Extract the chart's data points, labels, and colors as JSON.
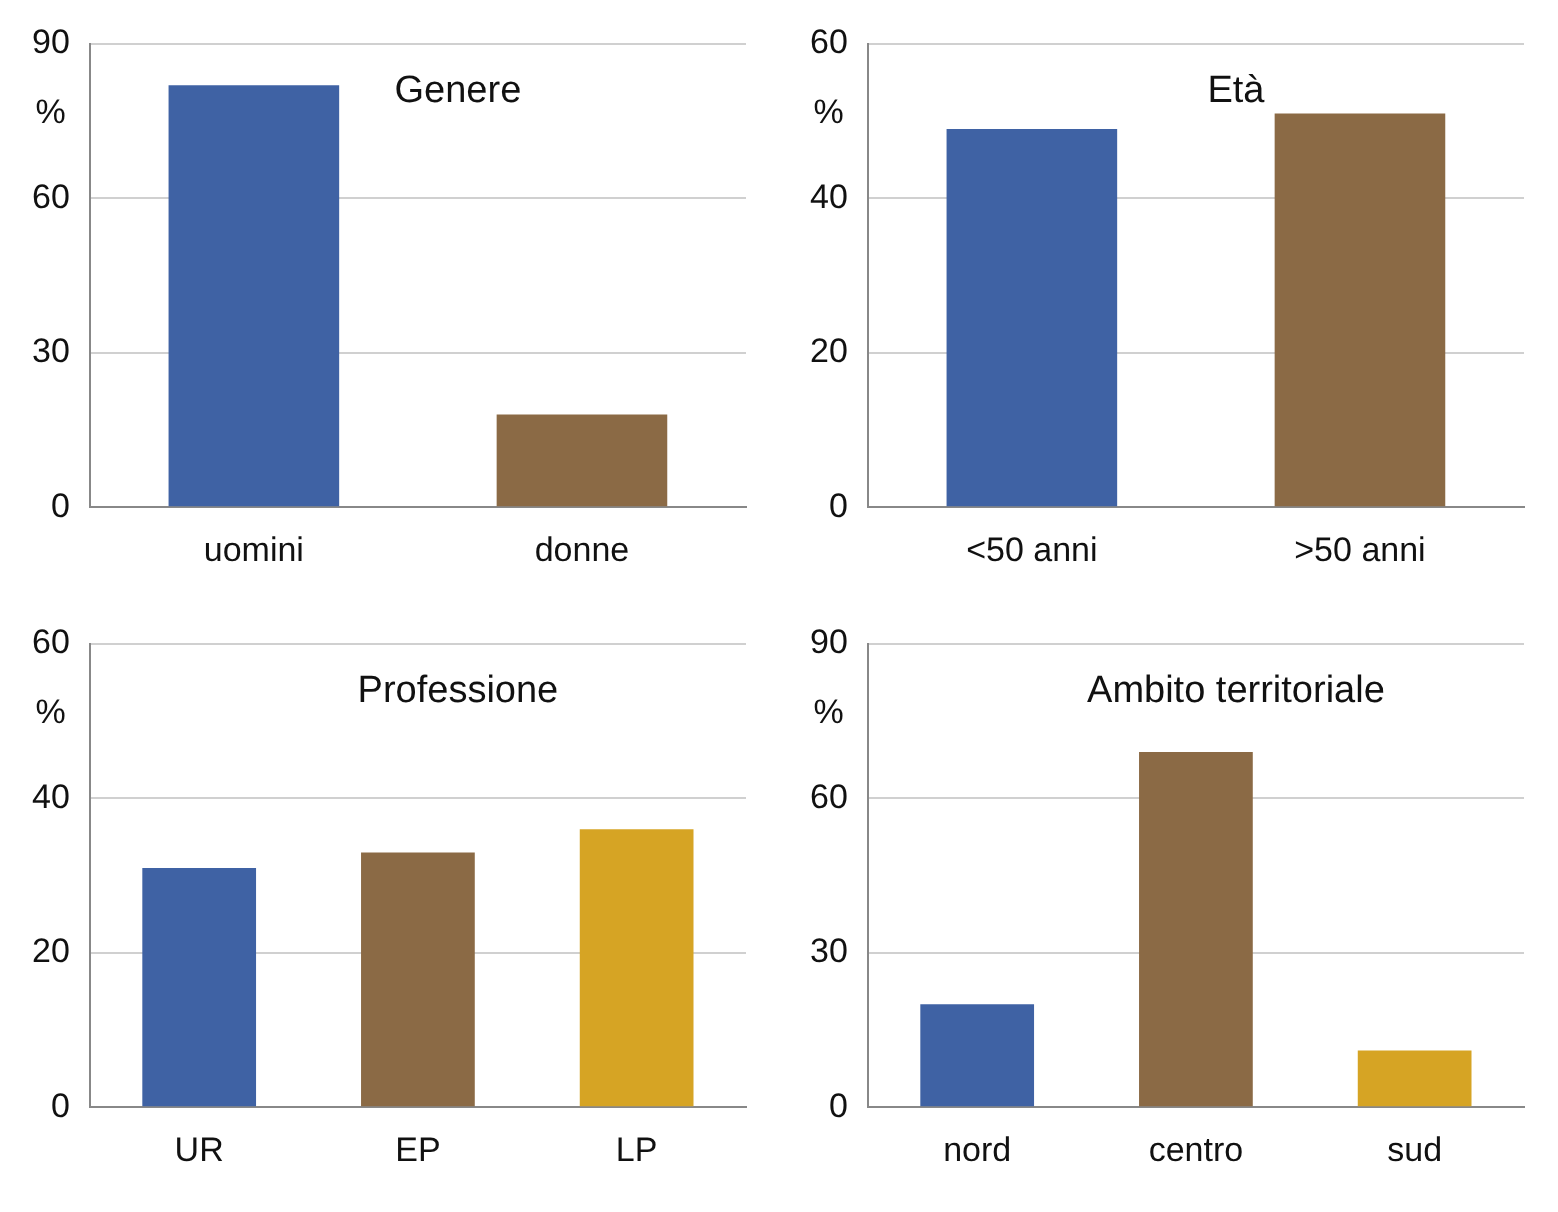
{
  "chart_data": [
    {
      "type": "bar",
      "title": "Genere",
      "ylabel": "%",
      "categories": [
        "uomini",
        "donne"
      ],
      "values": [
        82,
        18
      ],
      "colors": [
        "#3f62a4",
        "#8b6a45"
      ],
      "ylim": [
        0,
        90
      ],
      "yticks": [
        0,
        30,
        60,
        90
      ],
      "grid": "y"
    },
    {
      "type": "bar",
      "title": "Età",
      "ylabel": "%",
      "categories": [
        "<50 anni",
        ">50 anni"
      ],
      "values": [
        49,
        51
      ],
      "colors": [
        "#3f62a4",
        "#8b6a45"
      ],
      "ylim": [
        0,
        60
      ],
      "yticks": [
        0,
        20,
        40,
        60
      ],
      "grid": "y"
    },
    {
      "type": "bar",
      "title": "Professione",
      "ylabel": "%",
      "categories": [
        "UR",
        "EP",
        "LP"
      ],
      "values": [
        31,
        33,
        36
      ],
      "colors": [
        "#3f62a4",
        "#8b6a45",
        "#d6a424"
      ],
      "ylim": [
        0,
        60
      ],
      "yticks": [
        0,
        20,
        40,
        60
      ],
      "grid": "y"
    },
    {
      "type": "bar",
      "title": "Ambito territoriale",
      "ylabel": "%",
      "categories": [
        "nord",
        "centro",
        "sud"
      ],
      "values": [
        20,
        69,
        11
      ],
      "colors": [
        "#3f62a4",
        "#8b6a45",
        "#d6a424"
      ],
      "ylim": [
        0,
        90
      ],
      "yticks": [
        0,
        30,
        60,
        90
      ],
      "grid": "y"
    }
  ]
}
